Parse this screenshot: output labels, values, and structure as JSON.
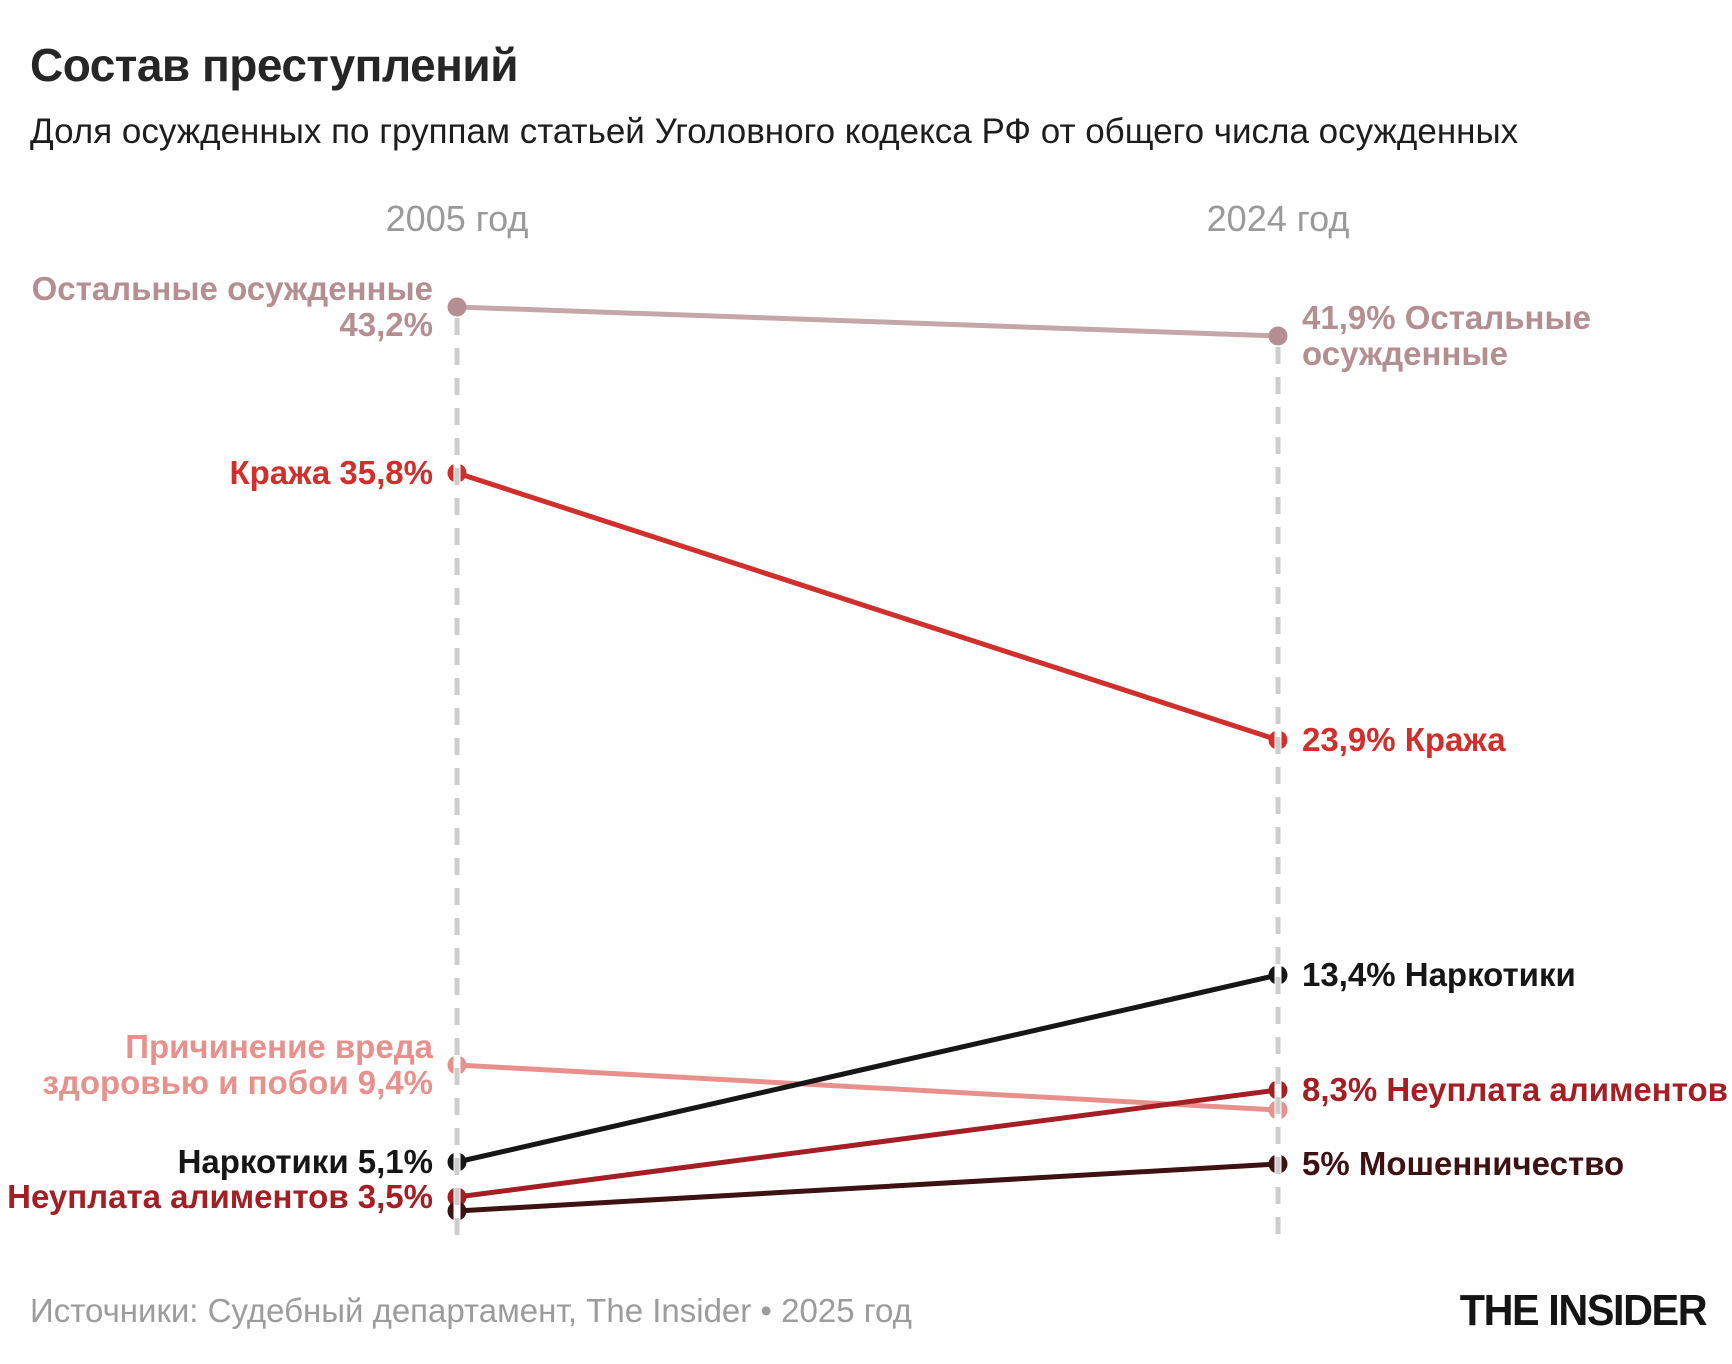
{
  "header": {
    "title": "Состав преступлений",
    "subtitle": "Доля осужденных по группам статьей Уголовного кодекса РФ от общего числа осужденных"
  },
  "footer": {
    "sources": "Источники: Судебный департамент, The Insider • 2025 год",
    "logo": "THE INSIDER"
  },
  "colors": {
    "axis_dash": "#cdcdcd",
    "year_label": "#9a9a9a",
    "text": "#1d1d1d"
  },
  "chart_data": {
    "type": "line",
    "subtype": "slope-chart",
    "title": "Состав преступлений",
    "subtitle": "Доля осужденных по группам статьей Уголовного кодекса РФ от общего числа осужденных",
    "unit": "%",
    "x_categories": [
      "2005 год",
      "2024 год"
    ],
    "ylim": [
      0,
      45
    ],
    "grid": false,
    "legend_position": "inline-labels",
    "series": [
      {
        "id": "ostalnye",
        "name": "Остальные осужденные",
        "values": [
          43.2,
          41.9
        ],
        "color": "#b58e92",
        "line_color": "#c5a6a9",
        "left_label": [
          "Остальные осужденные",
          "43,2%"
        ],
        "right_label": [
          "41,9% Остальные",
          "осужденные"
        ]
      },
      {
        "id": "krazha",
        "name": "Кража",
        "values": [
          35.8,
          23.9
        ],
        "color": "#d02f2c",
        "line_color": "#d02f2c",
        "left_label": [
          "Кража 35,8%"
        ],
        "right_label": [
          "23,9% Кража"
        ]
      },
      {
        "id": "vred",
        "name": "Причинение вреда здоровью и побои",
        "values": [
          9.4,
          7.4
        ],
        "color": "#e8908c",
        "line_color": "#e8908c",
        "left_label": [
          "Причинение вреда",
          "здоровью и побои 9,4%"
        ],
        "right_label": null
      },
      {
        "id": "narkotiki",
        "name": "Наркотики",
        "values": [
          5.1,
          13.4
        ],
        "color": "#161616",
        "line_color": "#161616",
        "left_label": [
          "Наркотики 5,1%"
        ],
        "right_label": [
          "13,4% Наркотики"
        ]
      },
      {
        "id": "alimenty",
        "name": "Неуплата алиментов",
        "values": [
          3.5,
          8.3
        ],
        "color": "#a41e23",
        "line_color": "#a41e23",
        "left_label": [
          "Неуплата алиментов 3,5%"
        ],
        "right_label": [
          "8,3% Неуплата алиментов"
        ]
      },
      {
        "id": "moshennichestvo",
        "name": "Мошенничество",
        "values": [
          2.9,
          5.0
        ],
        "color": "#3e1113",
        "line_color": "#3e1113",
        "left_label": null,
        "right_label": [
          "5% Мошенничество"
        ]
      }
    ]
  }
}
